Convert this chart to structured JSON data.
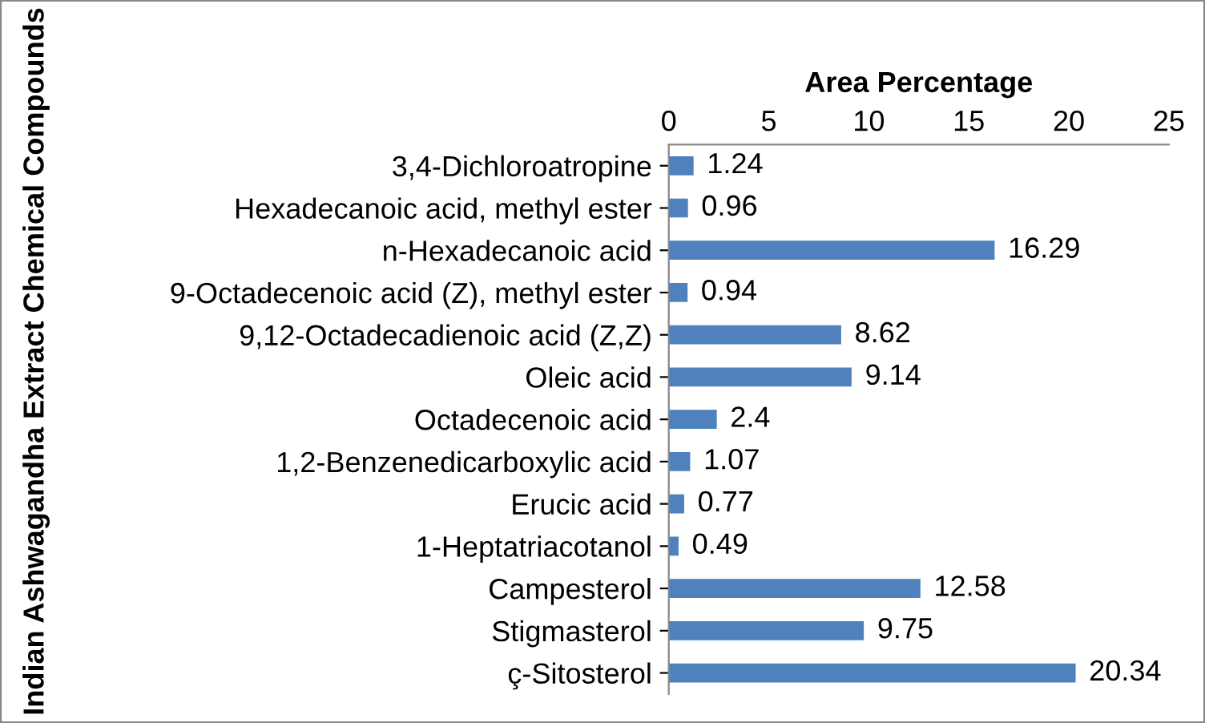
{
  "chart_data": {
    "type": "bar",
    "orientation": "horizontal",
    "xlabel": "Area Percentage",
    "ylabel": "Indian Ashwagandha Extract Chemical Compounds",
    "categories": [
      "3,4-Dichloroatropine",
      "Hexadecanoic acid, methyl ester",
      "n-Hexadecanoic acid",
      "9-Octadecenoic acid (Z), methyl ester",
      "9,12-Octadecadienoic acid (Z,Z)",
      "Oleic acid",
      "Octadecenoic acid",
      "1,2-Benzenedicarboxylic acid",
      "Erucic acid",
      "1-Heptatriacotanol",
      "Campesterol",
      "Stigmasterol",
      "ç-Sitosterol"
    ],
    "values": [
      1.24,
      0.96,
      16.29,
      0.94,
      8.62,
      9.14,
      2.4,
      1.07,
      0.77,
      0.49,
      12.58,
      9.75,
      20.34
    ],
    "color": "#4f81bd",
    "xlim": [
      0,
      25
    ],
    "xticks": [
      0,
      5,
      10,
      15,
      20,
      25
    ],
    "data_labels": true,
    "grid": false,
    "legend": false
  }
}
